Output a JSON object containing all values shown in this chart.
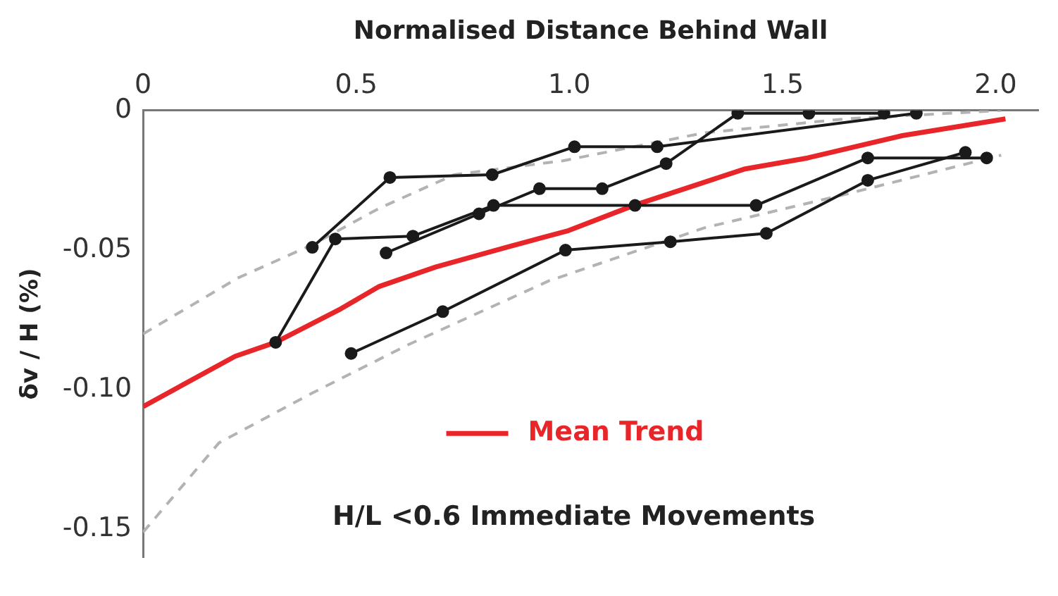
{
  "chart_data": {
    "type": "line",
    "xlabel": "Normalised Distance Behind Wall",
    "ylabel": "δv / H (%)",
    "annotations": [
      "H/L <0.6 Immediate Movements"
    ],
    "xlim": [
      0,
      2.1
    ],
    "xticks": [
      0,
      0.5,
      {
        "value": 1,
        "label": "1.0"
      },
      1.5,
      {
        "value": 2,
        "label": "2.0"
      }
    ],
    "ylim": [
      -0.16,
      0
    ],
    "yticks": [
      0,
      -0.05,
      {
        "value": -0.1,
        "label": "-0.10"
      },
      -0.15
    ],
    "grid": false,
    "legend": "bottom",
    "series": [
      {
        "color": "#1a1a1a",
        "marker": "circle",
        "line_style": "solid",
        "x": [
          0.397,
          0.579,
          0.819,
          1.012,
          1.206,
          1.814
        ],
        "values": [
          -0.049,
          -0.024,
          -0.023,
          -0.013,
          -0.013,
          -0.001
        ]
      },
      {
        "color": "#1a1a1a",
        "marker": "circle",
        "line_style": "solid",
        "x": [
          0.311,
          0.451,
          0.633,
          0.822,
          1.154,
          1.438,
          1.7,
          1.979
        ],
        "values": [
          -0.083,
          -0.046,
          -0.045,
          -0.034,
          -0.034,
          -0.034,
          -0.017,
          -0.017
        ]
      },
      {
        "color": "#1a1a1a",
        "marker": "circle",
        "line_style": "solid",
        "x": [
          0.57,
          0.788,
          0.93,
          1.077,
          1.227,
          1.395,
          1.562,
          1.738
        ],
        "values": [
          -0.051,
          -0.037,
          -0.028,
          -0.028,
          -0.019,
          -0.001,
          -0.001,
          -0.001
        ]
      },
      {
        "color": "#1a1a1a",
        "marker": "circle",
        "line_style": "solid",
        "x": [
          0.488,
          0.703,
          0.991,
          1.237,
          1.462,
          1.7,
          1.929
        ],
        "values": [
          -0.087,
          -0.072,
          -0.05,
          -0.047,
          -0.044,
          -0.025,
          -0.015
        ]
      },
      {
        "color": "#b3b3b3",
        "marker": "none",
        "line_style": "dashed",
        "x": [
          0,
          0.222,
          0.398,
          0.554,
          0.73,
          0.985,
          1.317,
          1.648,
          2.013
        ],
        "values": [
          -0.08,
          -0.06,
          -0.048,
          -0.035,
          -0.023,
          -0.018,
          -0.008,
          -0.003,
          0
        ]
      },
      {
        "color": "#b3b3b3",
        "marker": "none",
        "line_style": "dashed",
        "x": [
          0,
          0.178,
          0.399,
          0.62,
          0.952,
          1.317,
          1.648,
          2.013
        ],
        "values": [
          -0.151,
          -0.119,
          -0.101,
          -0.084,
          -0.061,
          -0.042,
          -0.03,
          -0.016
        ]
      },
      {
        "name": "Mean Trend",
        "color": "#e8262a",
        "marker": "none",
        "line_style": "solid",
        "x": [
          0,
          0.216,
          0.311,
          0.464,
          0.554,
          0.687,
          0.852,
          0.998,
          1.151,
          1.41,
          1.559,
          1.781,
          2.023
        ],
        "values": [
          -0.106,
          -0.088,
          -0.083,
          -0.071,
          -0.063,
          -0.056,
          -0.049,
          -0.043,
          -0.034,
          -0.021,
          -0.017,
          -0.009,
          -0.003
        ]
      }
    ]
  }
}
